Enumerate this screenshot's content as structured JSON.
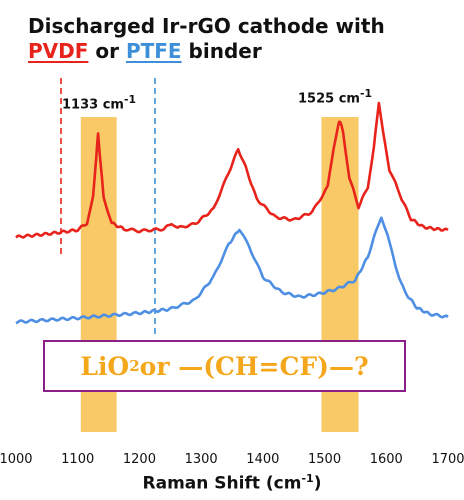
{
  "chart_data": {
    "type": "line",
    "title_line1": "Discharged Ir-rGO cathode with",
    "title_pvdf": "PVDF",
    "title_or": "or",
    "title_ptfe": "PTFE",
    "title_binder": "binder",
    "xlabel_prefix": "Raman Shift (cm",
    "xlabel_sup": "-1",
    "xlabel_suffix": ")",
    "xlim": [
      1000,
      1700
    ],
    "xticks": [
      1000,
      1100,
      1200,
      1300,
      1400,
      1500,
      1600,
      1700
    ],
    "highlight_bands": [
      [
        1105,
        1163
      ],
      [
        1495,
        1555
      ]
    ],
    "peak_labels": [
      {
        "x": 1133,
        "text": "1133 cm",
        "sup": "-1"
      },
      {
        "x": 1525,
        "text": "1525 cm",
        "sup": "-1"
      }
    ],
    "question_box": {
      "prefix": "LiO",
      "sub": "2",
      "suffix": " or —(CH=CF)—?"
    },
    "series": [
      {
        "name": "PVDF",
        "color": "#e8231b",
        "offset": 237,
        "x": [
          1000,
          1050,
          1100,
          1115,
          1125,
          1130,
          1133,
          1136,
          1142,
          1155,
          1175,
          1200,
          1240,
          1252,
          1262,
          1290,
          1320,
          1345,
          1360,
          1372,
          1390,
          1420,
          1450,
          1480,
          1505,
          1515,
          1522,
          1525,
          1530,
          1540,
          1555,
          1570,
          1580,
          1588,
          1595,
          1605,
          1615,
          1625,
          1640,
          1660,
          1680,
          1700
        ],
        "y": [
          0,
          3,
          7,
          14,
          40,
          80,
          104,
          80,
          40,
          14,
          8,
          6,
          8,
          14,
          9,
          13,
          28,
          65,
          88,
          70,
          38,
          20,
          17,
          25,
          50,
          90,
          112,
          116,
          105,
          60,
          30,
          50,
          90,
          135,
          105,
          65,
          55,
          38,
          18,
          10,
          8,
          7
        ]
      },
      {
        "name": "PTFE",
        "color": "#4e8fe3",
        "offset": 322,
        "x": [
          1000,
          1100,
          1200,
          1250,
          1290,
          1320,
          1345,
          1362,
          1378,
          1400,
          1430,
          1460,
          1490,
          1520,
          1550,
          1570,
          1582,
          1592,
          1602,
          1615,
          1630,
          1650,
          1670,
          1700
        ],
        "y": [
          0,
          4,
          9,
          13,
          22,
          45,
          78,
          93,
          75,
          45,
          30,
          25,
          28,
          33,
          42,
          65,
          88,
          105,
          88,
          55,
          30,
          14,
          8,
          5
        ]
      }
    ],
    "gridlines": false
  },
  "colors": {
    "pvdf": "#e8231b",
    "ptfe": "#3d8fd9",
    "band": "#f7c04b",
    "box_border": "#8a1f8a",
    "box_text": "#f5a71c"
  }
}
